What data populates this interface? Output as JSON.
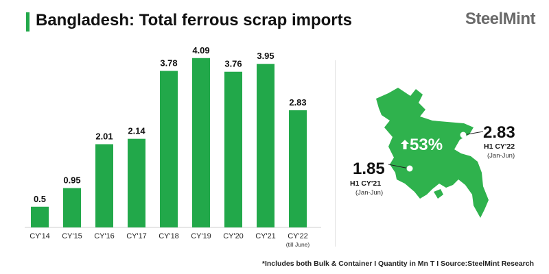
{
  "header": {
    "title": "Bangladesh: Total ferrous scrap imports",
    "logo_text": "SteelMint"
  },
  "chart_data": {
    "type": "bar",
    "title": "Bangladesh: Total ferrous scrap imports",
    "categories": [
      "CY'14",
      "CY'15",
      "CY'16",
      "CY'17",
      "CY'18",
      "CY'19",
      "CY'20",
      "CY'21",
      "CY'22"
    ],
    "category_notes": [
      "",
      "",
      "",
      "",
      "",
      "",
      "",
      "",
      "(till June)"
    ],
    "values": [
      0.5,
      0.95,
      2.01,
      2.14,
      3.78,
      4.09,
      3.76,
      3.95,
      2.83
    ],
    "value_labels": [
      "0.5",
      "0.95",
      "2.01",
      "2.14",
      "3.78",
      "4.09",
      "3.76",
      "3.95",
      "2.83"
    ],
    "unit": "Mn T",
    "ylim": [
      0,
      4.5
    ],
    "grid": false,
    "bar_color": "#22a84a"
  },
  "map": {
    "growth_label": "53%",
    "h1_22": {
      "value": "2.83",
      "label": "H1 CY'22",
      "period": "(Jan-Jun)"
    },
    "h1_21": {
      "value": "1.85",
      "label": "H1 CY'21",
      "period": "(Jan-Jun)"
    },
    "map_color": "#2fb24d"
  },
  "footnote": "*Includes both Bulk & Container  I  Quantity in Mn T  I  Source:SteelMint Research"
}
